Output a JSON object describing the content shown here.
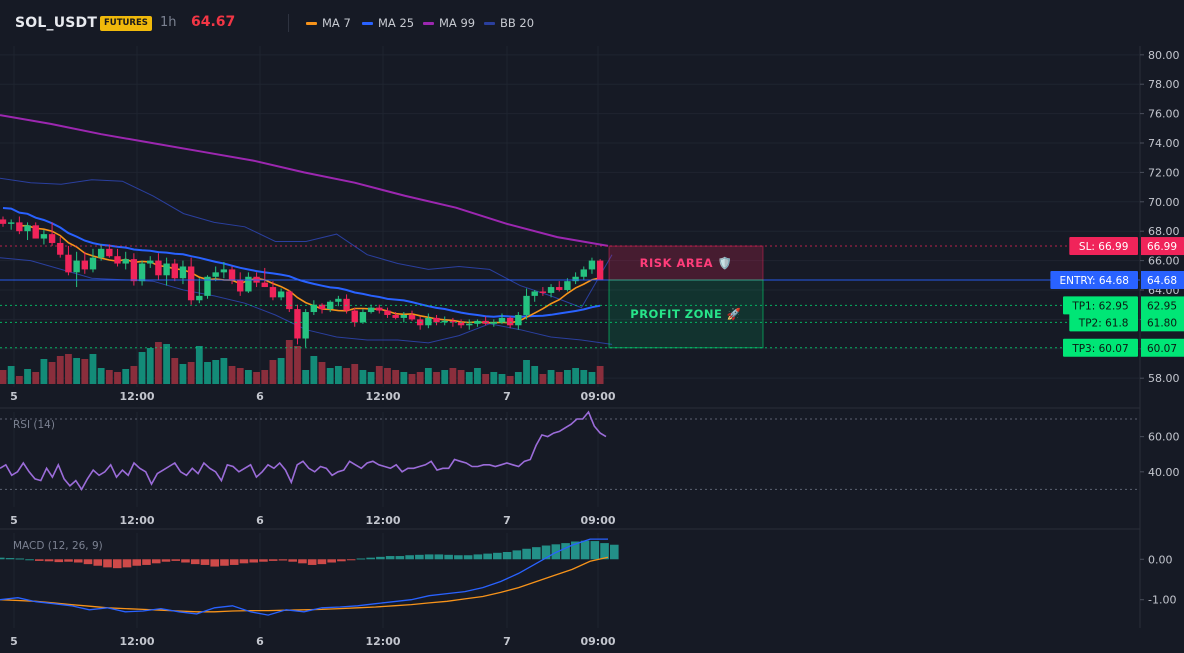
{
  "header": {
    "symbol": "SOL_USDT",
    "badge": "FUTURES",
    "timeframe": "1h",
    "last_price": "64.67",
    "legend": [
      {
        "label": "MA 7",
        "color": "#f7931a"
      },
      {
        "label": "MA 25",
        "color": "#2962ff"
      },
      {
        "label": "MA 99",
        "color": "#9c27b0"
      },
      {
        "label": "BB 20",
        "color": "#2a3f9e"
      }
    ]
  },
  "colors": {
    "up": "#26c281",
    "down": "#f0245a",
    "vol_up": "#138b78",
    "vol_down": "#8a2e3c"
  },
  "chart_data": [
    {
      "type": "candlestick",
      "name": "price",
      "ylim": [
        57.4,
        80.6
      ],
      "y_ticks": [
        "80.00",
        "78.00",
        "76.00",
        "74.00",
        "72.00",
        "70.00",
        "68.00",
        "66.00",
        "64.00",
        "62.00",
        "60.00",
        "58.00"
      ],
      "x_ticks": [
        "5",
        "12:00",
        "6",
        "12:00",
        "7",
        "09:00"
      ],
      "candles_ohlc": [
        [
          68.8,
          69.0,
          68.3,
          68.5
        ],
        [
          68.5,
          68.8,
          68.1,
          68.6
        ],
        [
          68.6,
          69.0,
          67.8,
          68.0
        ],
        [
          68.0,
          68.6,
          67.4,
          68.4
        ],
        [
          68.4,
          68.6,
          67.6,
          67.5
        ],
        [
          67.5,
          68.1,
          67.1,
          67.8
        ],
        [
          67.8,
          68.6,
          67.0,
          67.2
        ],
        [
          67.2,
          67.6,
          66.2,
          66.4
        ],
        [
          66.4,
          67.0,
          65.0,
          65.2
        ],
        [
          65.2,
          66.6,
          64.2,
          66.0
        ],
        [
          66.0,
          66.6,
          65.1,
          65.4
        ],
        [
          65.4,
          66.8,
          65.2,
          66.2
        ],
        [
          66.2,
          67.1,
          66.0,
          66.8
        ],
        [
          66.8,
          67.1,
          66.2,
          66.3
        ],
        [
          66.3,
          66.8,
          65.6,
          65.8
        ],
        [
          65.8,
          66.6,
          65.4,
          66.1
        ],
        [
          66.1,
          66.5,
          64.3,
          64.6
        ],
        [
          64.6,
          66.0,
          64.3,
          65.8
        ],
        [
          65.8,
          66.3,
          65.5,
          66.0
        ],
        [
          66.0,
          66.5,
          64.7,
          65.0
        ],
        [
          65.0,
          66.2,
          64.3,
          65.8
        ],
        [
          65.8,
          66.1,
          64.6,
          64.8
        ],
        [
          64.8,
          66.0,
          64.4,
          65.6
        ],
        [
          65.6,
          66.2,
          63.0,
          63.3
        ],
        [
          63.3,
          64.8,
          63.1,
          63.6
        ],
        [
          63.6,
          65.0,
          63.4,
          64.9
        ],
        [
          64.9,
          65.6,
          64.6,
          65.2
        ],
        [
          65.2,
          65.9,
          64.8,
          65.4
        ],
        [
          65.4,
          65.6,
          64.4,
          64.7
        ],
        [
          64.7,
          65.2,
          63.6,
          63.9
        ],
        [
          63.9,
          65.2,
          63.8,
          64.9
        ],
        [
          64.9,
          65.2,
          64.2,
          64.5
        ],
        [
          64.5,
          65.5,
          64.2,
          64.2
        ],
        [
          64.2,
          64.6,
          63.3,
          63.5
        ],
        [
          63.5,
          64.1,
          63.3,
          63.9
        ],
        [
          63.9,
          64.0,
          62.5,
          62.7
        ],
        [
          62.7,
          63.0,
          60.3,
          60.7
        ],
        [
          60.7,
          62.7,
          60.1,
          62.5
        ],
        [
          62.5,
          63.3,
          62.3,
          63.0
        ],
        [
          63.0,
          63.1,
          62.4,
          62.7
        ],
        [
          62.7,
          63.3,
          62.5,
          63.2
        ],
        [
          63.2,
          63.6,
          62.9,
          63.4
        ],
        [
          63.4,
          63.7,
          62.4,
          62.6
        ],
        [
          62.6,
          62.8,
          61.5,
          61.8
        ],
        [
          61.8,
          62.7,
          61.7,
          62.5
        ],
        [
          62.5,
          63.0,
          62.4,
          62.8
        ],
        [
          62.8,
          63.0,
          62.4,
          62.6
        ],
        [
          62.6,
          62.8,
          62.1,
          62.3
        ],
        [
          62.3,
          62.5,
          62.0,
          62.1
        ],
        [
          62.1,
          62.5,
          61.8,
          62.3
        ],
        [
          62.3,
          62.6,
          61.9,
          62.0
        ],
        [
          62.0,
          62.2,
          61.3,
          61.6
        ],
        [
          61.6,
          62.4,
          61.4,
          62.1
        ],
        [
          62.1,
          62.3,
          61.6,
          61.8
        ],
        [
          61.8,
          62.2,
          61.6,
          61.9
        ],
        [
          61.9,
          62.1,
          61.5,
          61.8
        ],
        [
          61.8,
          62.0,
          61.4,
          61.6
        ],
        [
          61.6,
          62.0,
          61.3,
          61.7
        ],
        [
          61.7,
          62.0,
          61.5,
          61.9
        ],
        [
          61.9,
          62.2,
          61.6,
          61.7
        ],
        [
          61.7,
          62.0,
          61.5,
          61.8
        ],
        [
          61.8,
          62.4,
          61.7,
          62.1
        ],
        [
          62.1,
          62.2,
          61.4,
          61.6
        ],
        [
          61.6,
          62.5,
          61.3,
          62.3
        ],
        [
          62.3,
          64.1,
          62.0,
          63.6
        ],
        [
          63.6,
          64.0,
          63.2,
          63.9
        ],
        [
          63.9,
          64.2,
          63.6,
          63.8
        ],
        [
          63.8,
          64.4,
          63.5,
          64.2
        ],
        [
          64.2,
          64.6,
          63.9,
          64.0
        ],
        [
          64.0,
          64.8,
          63.9,
          64.6
        ],
        [
          64.6,
          65.2,
          64.4,
          64.9
        ],
        [
          64.9,
          65.6,
          64.7,
          65.4
        ],
        [
          65.4,
          66.2,
          65.1,
          66.0
        ],
        [
          66.0,
          66.1,
          64.7,
          64.67
        ]
      ],
      "volumes": [
        14,
        18,
        8,
        15,
        12,
        25,
        22,
        28,
        30,
        26,
        25,
        30,
        16,
        14,
        12,
        15,
        18,
        32,
        36,
        42,
        40,
        26,
        20,
        22,
        38,
        22,
        24,
        26,
        18,
        16,
        14,
        12,
        14,
        24,
        26,
        44,
        38,
        14,
        28,
        22,
        16,
        18,
        16,
        20,
        14,
        12,
        18,
        16,
        14,
        12,
        10,
        12,
        16,
        12,
        14,
        16,
        14,
        12,
        16,
        10,
        12,
        10,
        8,
        12,
        24,
        18,
        10,
        14,
        12,
        14,
        16,
        14,
        12,
        18
      ],
      "lines": [
        {
          "name": "MA 7",
          "color": "#f7931a"
        },
        {
          "name": "MA 25",
          "color": "#2962ff"
        },
        {
          "name": "MA 99",
          "color": "#9c27b0",
          "values": [
            75.9,
            75.3,
            74.6,
            74.0,
            73.4,
            72.8,
            72.0,
            71.3,
            70.4,
            69.6,
            68.5,
            67.6,
            67.0
          ]
        },
        {
          "name": "BB 20",
          "color": "#2a3f9e",
          "upper": [
            71.6,
            71.3,
            71.2,
            71.5,
            71.4,
            70.4,
            69.2,
            68.6,
            68.3,
            67.3,
            67.3,
            67.8,
            66.4,
            65.8,
            65.4,
            65.6,
            65.4,
            64.3,
            63.6,
            62.8,
            66.4
          ],
          "lower": [
            66.2,
            66.0,
            65.4,
            64.8,
            64.7,
            64.6,
            64.0,
            63.6,
            63.1,
            62.3,
            61.3,
            60.8,
            60.6,
            60.6,
            60.4,
            60.9,
            61.7,
            61.3,
            60.8,
            60.6,
            60.3
          ]
        }
      ],
      "levels": [
        {
          "kind": "sl",
          "label": "SL: 66.99",
          "value": 66.99,
          "price_label": "66.99",
          "color": "#f0245a"
        },
        {
          "kind": "entry",
          "label": "ENTRY: 64.68",
          "value": 64.68,
          "price_label": "64.68",
          "color": "#2962ff"
        },
        {
          "kind": "tp",
          "label": "TP1: 62.95",
          "value": 62.95,
          "price_label": "62.95",
          "color": "#00e676"
        },
        {
          "kind": "tp",
          "label": "TP2: 61.8",
          "value": 61.8,
          "price_label": "61.80",
          "color": "#00e676"
        },
        {
          "kind": "tp",
          "label": "TP3: 60.07",
          "value": 60.07,
          "price_label": "60.07",
          "color": "#00e676"
        }
      ],
      "zones": {
        "risk_label": "RISK AREA 🛡️",
        "profit_label": "PROFIT ZONE 🚀"
      }
    },
    {
      "type": "line",
      "name": "RSI",
      "title": "RSI (14)",
      "ylim": [
        20,
        74
      ],
      "y_ticks": [
        "60.00",
        "40.00"
      ],
      "guides": [
        70,
        30
      ],
      "x_ticks": [
        "5",
        "12:00",
        "6",
        "12:00",
        "7",
        "09:00"
      ],
      "color": "#9b6cd9",
      "values": [
        42,
        44,
        38,
        40,
        45,
        40,
        36,
        35,
        42,
        37,
        44,
        36,
        32,
        35,
        30,
        36,
        41,
        38,
        40,
        44,
        37,
        41,
        38,
        45,
        42,
        40,
        33,
        39,
        41,
        43,
        45,
        40,
        38,
        42,
        39,
        45,
        42,
        40,
        35,
        44,
        43,
        40,
        42,
        44,
        37,
        40,
        44,
        42,
        45,
        41,
        34,
        44,
        46,
        42,
        40,
        43,
        42,
        38,
        40,
        41,
        46,
        44,
        42,
        45,
        46,
        44,
        43,
        42,
        44,
        40,
        42,
        42,
        43,
        44,
        46,
        41,
        42,
        42,
        47,
        46,
        45,
        43,
        43,
        44,
        44,
        43,
        44,
        45,
        44,
        43,
        46,
        47,
        55,
        61,
        60,
        62,
        63,
        65,
        67,
        70,
        70,
        74,
        66,
        62,
        60
      ]
    },
    {
      "type": "bar",
      "name": "MACD",
      "title": "MACD (12, 26, 9)",
      "ylim": [
        -1.7,
        0.65
      ],
      "y_ticks": [
        "0.00",
        "-1.00"
      ],
      "x_ticks": [
        "5",
        "12:00",
        "6",
        "12:00",
        "7",
        "09:00"
      ],
      "histogram": [
        0.04,
        0.03,
        0.02,
        0.0,
        -0.04,
        -0.05,
        -0.07,
        -0.06,
        -0.08,
        -0.12,
        -0.16,
        -0.2,
        -0.22,
        -0.2,
        -0.16,
        -0.14,
        -0.1,
        -0.06,
        -0.04,
        -0.08,
        -0.12,
        -0.14,
        -0.18,
        -0.16,
        -0.14,
        -0.1,
        -0.08,
        -0.06,
        -0.04,
        -0.03,
        -0.06,
        -0.1,
        -0.14,
        -0.12,
        -0.08,
        -0.05,
        -0.02,
        0.02,
        0.04,
        0.06,
        0.08,
        0.08,
        0.1,
        0.11,
        0.12,
        0.12,
        0.11,
        0.1,
        0.1,
        0.12,
        0.14,
        0.16,
        0.18,
        0.22,
        0.26,
        0.3,
        0.34,
        0.37,
        0.4,
        0.44,
        0.46,
        0.45,
        0.4,
        0.36
      ],
      "macd": [
        -1.0,
        -0.95,
        -1.05,
        -1.1,
        -1.15,
        -1.25,
        -1.2,
        -1.3,
        -1.28,
        -1.22,
        -1.3,
        -1.35,
        -1.2,
        -1.15,
        -1.3,
        -1.38,
        -1.25,
        -1.3,
        -1.2,
        -1.18,
        -1.15,
        -1.1,
        -1.05,
        -1.0,
        -0.9,
        -0.85,
        -0.8,
        -0.7,
        -0.55,
        -0.35,
        -0.1,
        0.15,
        0.35,
        0.5,
        0.5
      ],
      "signal": [
        -1.0,
        -1.02,
        -1.04,
        -1.08,
        -1.12,
        -1.16,
        -1.2,
        -1.22,
        -1.24,
        -1.26,
        -1.28,
        -1.3,
        -1.3,
        -1.28,
        -1.27,
        -1.27,
        -1.26,
        -1.25,
        -1.24,
        -1.22,
        -1.2,
        -1.18,
        -1.15,
        -1.12,
        -1.08,
        -1.04,
        -0.98,
        -0.92,
        -0.82,
        -0.7,
        -0.55,
        -0.4,
        -0.25,
        -0.05,
        0.05
      ],
      "macd_color": "#2962ff",
      "signal_color": "#f7931a"
    }
  ]
}
